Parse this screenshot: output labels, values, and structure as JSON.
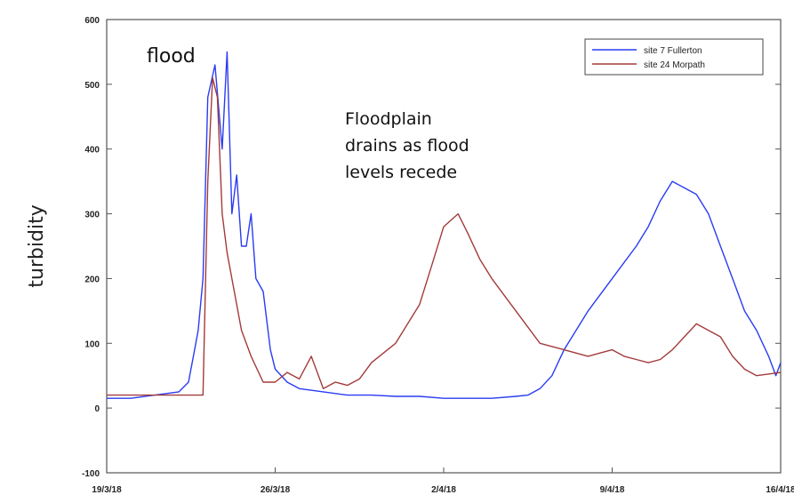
{
  "chart_data": {
    "type": "line",
    "ylabel": "turbidity",
    "ylim": [
      -100,
      600
    ],
    "yticks": [
      -100,
      0,
      100,
      200,
      300,
      400,
      500,
      600
    ],
    "xticks": [
      "19/3/18",
      "26/3/18",
      "2/4/18",
      "9/4/18",
      "16/4/18"
    ],
    "xlim_days": [
      0,
      28
    ],
    "legend_position": "top-right",
    "annotations": [
      {
        "text": "flood",
        "lines": [
          "flood"
        ]
      },
      {
        "text": "Floodplain drains as flood levels recede",
        "lines": [
          "Floodplain",
          "drains as flood",
          "levels recede"
        ]
      }
    ],
    "series": [
      {
        "name": "site 7 Fullerton",
        "color": "#2a3cf2",
        "x": [
          0,
          1,
          2,
          3,
          3.4,
          3.6,
          3.8,
          4,
          4.2,
          4.5,
          4.8,
          5,
          5.2,
          5.4,
          5.6,
          5.8,
          6,
          6.2,
          6.5,
          6.8,
          7,
          7.5,
          8,
          9,
          10,
          11,
          12,
          13,
          14,
          15,
          16,
          17,
          17.5,
          18,
          18.5,
          19,
          20,
          21,
          22,
          22.5,
          23,
          23.5,
          24,
          24.5,
          25,
          25.5,
          26,
          26.5,
          27,
          27.5,
          27.8,
          28
        ],
        "y": [
          15,
          15,
          20,
          25,
          40,
          80,
          120,
          200,
          480,
          530,
          400,
          550,
          300,
          360,
          250,
          250,
          300,
          200,
          180,
          90,
          60,
          40,
          30,
          25,
          20,
          20,
          18,
          18,
          15,
          15,
          15,
          18,
          20,
          30,
          50,
          90,
          150,
          200,
          250,
          280,
          320,
          350,
          340,
          330,
          300,
          250,
          200,
          150,
          120,
          80,
          50,
          70
        ]
      },
      {
        "name": "site 24 Morpath",
        "color": "#a33b3b",
        "x": [
          0,
          1,
          2,
          3,
          4,
          4.2,
          4.4,
          4.6,
          4.8,
          5,
          5.3,
          5.6,
          6,
          6.5,
          7,
          7.5,
          8,
          8.5,
          9,
          9.5,
          10,
          10.5,
          11,
          12,
          13,
          13.5,
          14,
          14.3,
          14.6,
          15,
          15.5,
          16,
          17,
          18,
          19,
          20,
          20.5,
          21,
          21.5,
          22,
          22.5,
          23,
          23.5,
          24,
          24.5,
          25,
          25.5,
          26,
          26.5,
          27,
          28
        ],
        "y": [
          20,
          20,
          20,
          20,
          20,
          350,
          510,
          480,
          300,
          240,
          180,
          120,
          80,
          40,
          40,
          55,
          45,
          80,
          30,
          40,
          35,
          45,
          70,
          100,
          160,
          220,
          280,
          290,
          300,
          270,
          230,
          200,
          150,
          100,
          90,
          80,
          85,
          90,
          80,
          75,
          70,
          75,
          90,
          110,
          130,
          120,
          110,
          80,
          60,
          50,
          55
        ]
      }
    ]
  }
}
